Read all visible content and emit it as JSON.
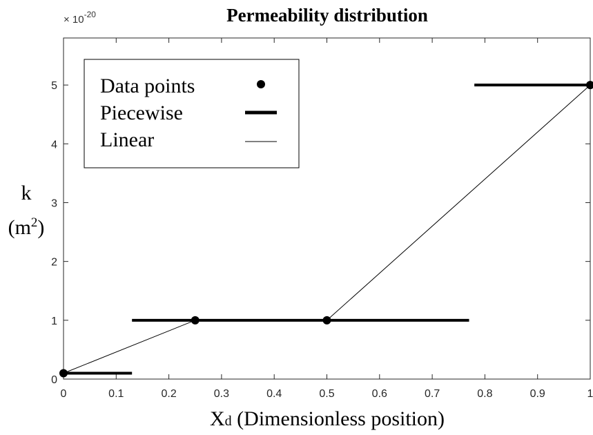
{
  "chart_data": {
    "type": "line",
    "title": "Permeability distribution",
    "xlabel_main": "X",
    "xlabel_sub": "d",
    "xlabel_rest": " (Dimensionless position)",
    "ylabel_line1": "k",
    "ylabel_line2_pre": "(m",
    "ylabel_line2_sup": "2",
    "ylabel_line2_post": ")",
    "exponent_prefix": "× 10",
    "exponent_power": "-20",
    "xlim": [
      0,
      1
    ],
    "ylim": [
      0,
      5.8
    ],
    "xticks": [
      0,
      0.1,
      0.2,
      0.3,
      0.4,
      0.5,
      0.6,
      0.7,
      0.8,
      0.9,
      1
    ],
    "xtick_labels": [
      "0",
      "0.1",
      "0.2",
      "0.3",
      "0.4",
      "0.5",
      "0.6",
      "0.7",
      "0.8",
      "0.9",
      "1"
    ],
    "yticks": [
      0,
      1,
      2,
      3,
      4,
      5
    ],
    "ytick_labels": [
      "0",
      "1",
      "2",
      "3",
      "4",
      "5"
    ],
    "grid": false,
    "legend_position": "top-left",
    "legend": [
      {
        "label": "Data points",
        "style": "marker"
      },
      {
        "label": "Piecewise",
        "style": "thick-line"
      },
      {
        "label": "Linear",
        "style": "thin-line"
      }
    ],
    "series": [
      {
        "name": "Data points",
        "type": "scatter",
        "color": "#000000",
        "x": [
          0,
          0.25,
          0.5,
          1
        ],
        "y": [
          0.1,
          1,
          1,
          5
        ]
      },
      {
        "name": "Piecewise",
        "type": "segments",
        "color": "#000000",
        "segments": [
          {
            "x0": 0,
            "x1": 0.13,
            "y": 0.1
          },
          {
            "x0": 0.13,
            "x1": 0.77,
            "y": 1
          },
          {
            "x0": 0.78,
            "x1": 1,
            "y": 5
          }
        ]
      },
      {
        "name": "Linear",
        "type": "line",
        "color": "#000000",
        "x": [
          0,
          0.25,
          0.5,
          1
        ],
        "y": [
          0.1,
          1,
          1,
          5
        ]
      }
    ]
  }
}
